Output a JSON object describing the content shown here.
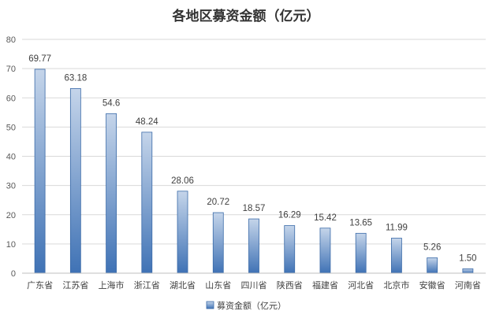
{
  "chart_data": {
    "type": "bar",
    "title": "各地区募资金额（亿元）",
    "categories": [
      "广东省",
      "江苏省",
      "上海市",
      "浙江省",
      "湖北省",
      "山东省",
      "四川省",
      "陕西省",
      "福建省",
      "河北省",
      "北京市",
      "安徽省",
      "河南省"
    ],
    "series": [
      {
        "name": "募资金额（亿元）",
        "values": [
          69.77,
          63.18,
          54.6,
          48.24,
          28.06,
          20.72,
          18.57,
          16.29,
          15.42,
          13.65,
          11.99,
          5.26,
          1.5
        ],
        "labels": [
          "69.77",
          "63.18",
          "54.6",
          "48.24",
          "28.06",
          "20.72",
          "18.57",
          "16.29",
          "15.42",
          "13.65",
          "11.99",
          "5.26",
          "1.50"
        ]
      }
    ],
    "ylim": [
      0,
      80
    ],
    "yticks": [
      0,
      10,
      20,
      30,
      40,
      50,
      60,
      70,
      80
    ],
    "grid": true,
    "legend_position": "bottom",
    "colors": {
      "bar_top": "#c5d5ea",
      "bar_bottom": "#3f72b5",
      "bar_edge": "#3a6aa8"
    }
  }
}
